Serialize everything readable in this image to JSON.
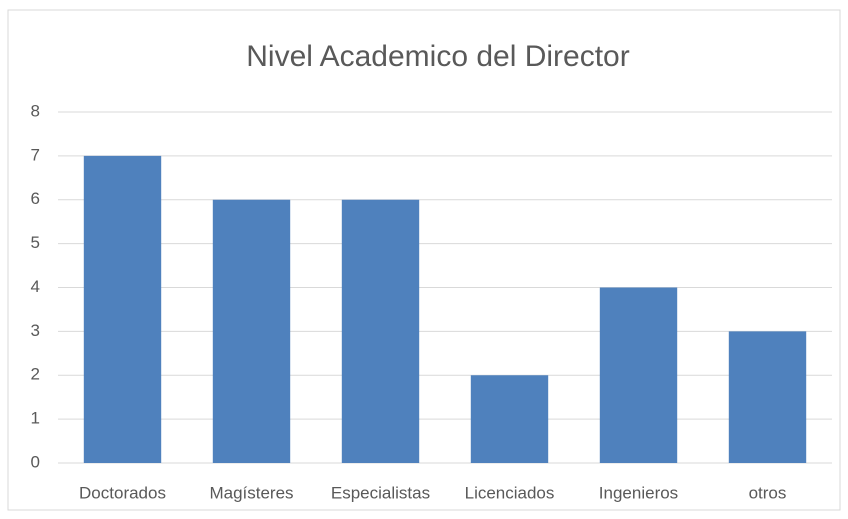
{
  "chart_data": {
    "type": "bar",
    "title": "Nivel Academico del Director",
    "categories": [
      "Doctorados",
      "Magísteres",
      "Especialistas",
      "Licenciados",
      "Ingenieros",
      "otros"
    ],
    "values": [
      7,
      6,
      6,
      2,
      4,
      3
    ],
    "color": "#4f81bd",
    "ylim": [
      0,
      8
    ],
    "yticks": [
      0,
      1,
      2,
      3,
      4,
      5,
      6,
      7,
      8
    ],
    "grid": true
  }
}
